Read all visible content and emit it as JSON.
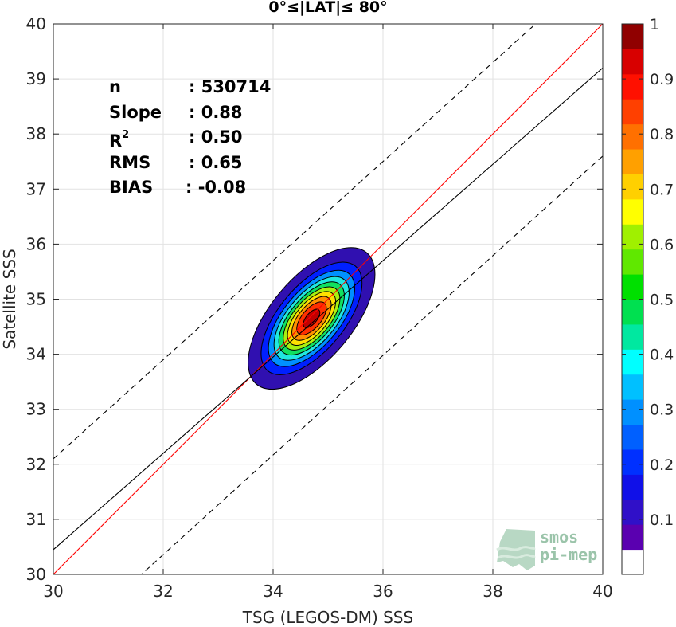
{
  "chart_data": {
    "type": "contour",
    "title": "0°≤|LAT|≤ 80°",
    "xlabel": "TSG (LEGOS-DM) SSS",
    "ylabel": "Satellite SSS",
    "xlim": [
      30,
      40
    ],
    "ylim": [
      30,
      40
    ],
    "xticks": [
      "30",
      "32",
      "34",
      "36",
      "38",
      "40"
    ],
    "yticks": [
      "30",
      "31",
      "32",
      "33",
      "34",
      "35",
      "36",
      "37",
      "38",
      "39",
      "40"
    ],
    "grid": true,
    "stats": {
      "n_label": "n",
      "n_value": ": 530714",
      "slope_label": "Slope",
      "slope_value": ": 0.88",
      "r2_label": "R",
      "r2_sup": "2",
      "r2_value": ": 0.50",
      "rms_label": "RMS",
      "rms_value": ": 0.65",
      "bias_label": "BIAS",
      "bias_value": ": -0.08"
    },
    "lines": [
      {
        "name": "1:1",
        "color": "#ff0000",
        "style": "solid",
        "from": [
          30,
          30
        ],
        "to": [
          40,
          40
        ]
      },
      {
        "name": "fit",
        "color": "#000000",
        "style": "solid",
        "from": [
          30,
          30.45
        ],
        "to": [
          40,
          39.2
        ]
      },
      {
        "name": "fit+offset",
        "color": "#000000",
        "style": "dashed",
        "from": [
          30,
          32.1
        ],
        "to": [
          40,
          41.1
        ]
      },
      {
        "name": "fit-offset",
        "color": "#000000",
        "style": "dashed",
        "from": [
          30,
          28.55
        ],
        "to": [
          40,
          37.6
        ]
      }
    ],
    "density": {
      "center": [
        34.7,
        34.65
      ],
      "levels": [
        0.05,
        0.15,
        0.25,
        0.35,
        0.45,
        0.55,
        0.65,
        0.75,
        0.85,
        0.95
      ],
      "colors": [
        "#3010b0",
        "#0020ff",
        "#0090ff",
        "#20e8e0",
        "#10e060",
        "#a8f010",
        "#ffe000",
        "#ff9000",
        "#ff3000",
        "#c00000"
      ]
    },
    "colorbar": {
      "ticks": [
        "0.1",
        "0.2",
        "0.3",
        "0.4",
        "0.5",
        "0.6",
        "0.7",
        "0.8",
        "0.9",
        "1"
      ],
      "colors": [
        "#ffffff",
        "#5a00b0",
        "#3010c8",
        "#1010e8",
        "#0030ff",
        "#0060ff",
        "#0090ff",
        "#00c0ff",
        "#00ffff",
        "#00e8a0",
        "#00e050",
        "#00e000",
        "#60e800",
        "#a0f000",
        "#ffff00",
        "#ffd000",
        "#ffa000",
        "#ff7000",
        "#ff4000",
        "#ff1000",
        "#d80000",
        "#900000"
      ]
    }
  },
  "logo": {
    "line1": "smos",
    "line2": "pi-mep"
  }
}
